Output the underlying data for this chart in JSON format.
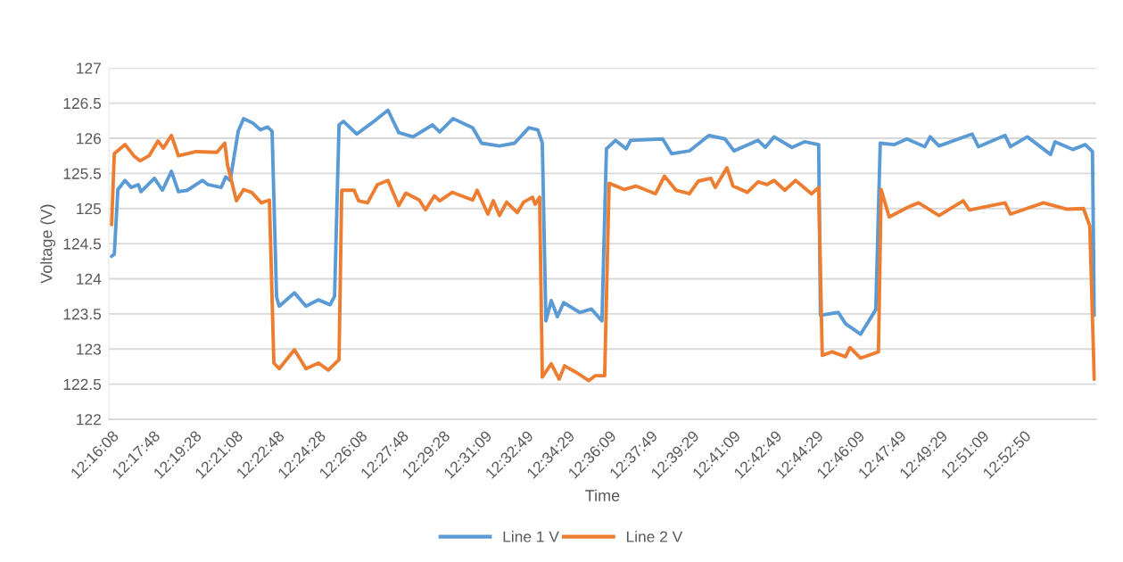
{
  "chart_data": {
    "type": "line",
    "xlabel": "Time",
    "ylabel": "Voltage (V)",
    "xlim": [
      12.2671,
      12.929
    ],
    "ylim": [
      122,
      127
    ],
    "yticks": [
      122,
      122.5,
      123,
      123.5,
      124,
      124.5,
      125,
      125.5,
      126,
      126.5,
      127
    ],
    "xticks": [
      {
        "value": 12.268889,
        "label": "12:16:08"
      },
      {
        "value": 12.296667,
        "label": "12:17:48"
      },
      {
        "value": 12.324444,
        "label": "12:19:28"
      },
      {
        "value": 12.352222,
        "label": "12:21:08"
      },
      {
        "value": 12.38,
        "label": "12:22:48"
      },
      {
        "value": 12.407778,
        "label": "12:24:28"
      },
      {
        "value": 12.435556,
        "label": "12:26:08"
      },
      {
        "value": 12.463333,
        "label": "12:27:48"
      },
      {
        "value": 12.491111,
        "label": "12:29:28"
      },
      {
        "value": 12.519167,
        "label": "12:31:09"
      },
      {
        "value": 12.546944,
        "label": "12:32:49"
      },
      {
        "value": 12.574722,
        "label": "12:34:29"
      },
      {
        "value": 12.6025,
        "label": "12:36:09"
      },
      {
        "value": 12.630278,
        "label": "12:37:49"
      },
      {
        "value": 12.658056,
        "label": "12:39:29"
      },
      {
        "value": 12.685833,
        "label": "12:41:09"
      },
      {
        "value": 12.713611,
        "label": "12:42:49"
      },
      {
        "value": 12.741389,
        "label": "12:44:29"
      },
      {
        "value": 12.769167,
        "label": "12:46:09"
      },
      {
        "value": 12.796944,
        "label": "12:47:49"
      },
      {
        "value": 12.824722,
        "label": "12:49:29"
      },
      {
        "value": 12.8525,
        "label": "12:51:09"
      },
      {
        "value": 12.880556,
        "label": "12:52:50"
      }
    ],
    "grid": "y",
    "legend": "bottom",
    "marker": "none",
    "line_style": "solid",
    "series": [
      {
        "name": "Line 1 V",
        "color": "#5b9bd5",
        "x": [
          12.2689,
          12.2707,
          12.2731,
          12.2779,
          12.282,
          12.2868,
          12.2886,
          12.2976,
          12.303,
          12.309,
          12.3137,
          12.3197,
          12.3299,
          12.3335,
          12.3424,
          12.3454,
          12.3484,
          12.3538,
          12.3574,
          12.3634,
          12.3687,
          12.3735,
          12.3765,
          12.3795,
          12.3813,
          12.3915,
          12.3992,
          12.4076,
          12.4154,
          12.4184,
          12.4214,
          12.4244,
          12.4333,
          12.4435,
          12.4542,
          12.4614,
          12.471,
          12.4841,
          12.4889,
          12.4979,
          12.511,
          12.517,
          12.529,
          12.5391,
          12.5487,
          12.5547,
          12.5577,
          12.5601,
          12.5637,
          12.5678,
          12.572,
          12.5828,
          12.5906,
          12.5977,
          12.6007,
          12.6067,
          12.6139,
          12.6169,
          12.6384,
          12.6444,
          12.6563,
          12.6695,
          12.6802,
          12.6862,
          12.7024,
          12.7072,
          12.7131,
          12.7251,
          12.7335,
          12.743,
          12.7442,
          12.7562,
          12.761,
          12.7711,
          12.7813,
          12.7843,
          12.7938,
          12.8022,
          12.8142,
          12.8178,
          12.8237,
          12.8459,
          12.8501,
          12.868,
          12.8716,
          12.8829,
          12.8985,
          12.9015,
          12.9134,
          12.9218,
          12.9266,
          12.9278
        ],
        "values": [
          124.32,
          124.35,
          125.27,
          125.4,
          125.3,
          125.34,
          125.24,
          125.43,
          125.26,
          125.53,
          125.24,
          125.26,
          125.4,
          125.34,
          125.3,
          125.45,
          125.4,
          126.1,
          126.28,
          126.22,
          126.12,
          126.16,
          126.1,
          123.74,
          123.61,
          123.8,
          123.61,
          123.7,
          123.63,
          123.75,
          126.19,
          126.24,
          126.06,
          126.22,
          126.4,
          126.08,
          126.02,
          126.19,
          126.09,
          126.28,
          126.15,
          125.93,
          125.89,
          125.93,
          126.15,
          126.12,
          125.93,
          123.4,
          123.69,
          123.46,
          123.66,
          123.52,
          123.57,
          123.4,
          125.85,
          125.97,
          125.85,
          125.97,
          125.99,
          125.78,
          125.82,
          126.04,
          125.99,
          125.82,
          125.97,
          125.87,
          126.02,
          125.87,
          125.95,
          125.91,
          123.48,
          123.52,
          123.36,
          123.21,
          123.56,
          125.93,
          125.91,
          125.99,
          125.88,
          126.02,
          125.89,
          126.06,
          125.88,
          126.04,
          125.88,
          126.02,
          125.77,
          125.95,
          125.84,
          125.91,
          125.81,
          123.48
        ]
      },
      {
        "name": "Line 2 V",
        "color": "#ed7d31",
        "x": [
          12.2689,
          12.2707,
          12.2779,
          12.2838,
          12.288,
          12.294,
          12.3,
          12.3036,
          12.309,
          12.3137,
          12.3257,
          12.3395,
          12.3448,
          12.3466,
          12.3526,
          12.3574,
          12.3628,
          12.3693,
          12.3747,
          12.3777,
          12.3813,
          12.3915,
          12.3992,
          12.4076,
          12.4142,
          12.4214,
          12.4232,
          12.4315,
          12.4345,
          12.4405,
          12.4471,
          12.4542,
          12.4614,
          12.4662,
          12.4752,
          12.4794,
          12.4853,
          12.4889,
          12.4973,
          12.511,
          12.514,
          12.5212,
          12.5248,
          12.529,
          12.5338,
          12.5409,
          12.5451,
          12.5511,
          12.5529,
          12.5559,
          12.5577,
          12.5637,
          12.569,
          12.5726,
          12.581,
          12.5888,
          12.593,
          12.5995,
          12.6025,
          12.6127,
          12.6205,
          12.6336,
          12.6396,
          12.6474,
          12.6563,
          12.6623,
          12.6707,
          12.6737,
          12.6815,
          12.6856,
          12.6952,
          12.7024,
          12.7084,
          12.7131,
          12.7203,
          12.7275,
          12.7382,
          12.743,
          12.7454,
          12.752,
          12.761,
          12.764,
          12.7711,
          12.7831,
          12.7849,
          12.7903,
          12.804,
          12.81,
          12.8237,
          12.8399,
          12.8441,
          12.868,
          12.8716,
          12.8937,
          12.9098,
          12.9206,
          12.9248,
          12.9278
        ],
        "values": [
          124.77,
          125.78,
          125.91,
          125.75,
          125.68,
          125.75,
          125.96,
          125.86,
          126.04,
          125.75,
          125.81,
          125.8,
          125.93,
          125.62,
          125.11,
          125.27,
          125.23,
          125.08,
          125.12,
          122.8,
          122.72,
          122.99,
          122.72,
          122.8,
          122.7,
          122.85,
          125.26,
          125.26,
          125.11,
          125.08,
          125.34,
          125.4,
          125.04,
          125.22,
          125.12,
          124.98,
          125.18,
          125.11,
          125.23,
          125.12,
          125.26,
          124.92,
          125.11,
          124.9,
          125.09,
          124.94,
          125.09,
          125.16,
          125.06,
          125.16,
          122.6,
          122.79,
          122.57,
          122.76,
          122.66,
          122.55,
          122.62,
          122.62,
          125.36,
          125.27,
          125.32,
          125.21,
          125.46,
          125.26,
          125.21,
          125.39,
          125.43,
          125.3,
          125.58,
          125.32,
          125.23,
          125.38,
          125.34,
          125.4,
          125.26,
          125.4,
          125.21,
          125.3,
          122.91,
          122.96,
          122.89,
          123.02,
          122.87,
          122.96,
          125.27,
          124.88,
          125.03,
          125.08,
          124.9,
          125.11,
          124.98,
          125.08,
          124.92,
          125.08,
          124.99,
          125.0,
          124.75,
          122.57
        ]
      }
    ]
  }
}
